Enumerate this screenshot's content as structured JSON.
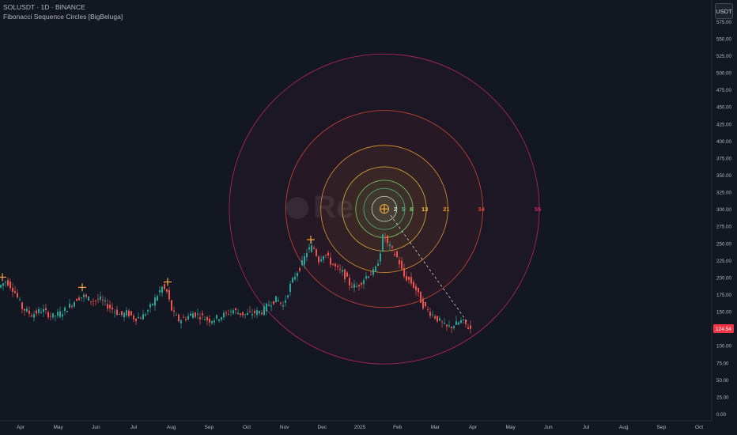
{
  "header": {
    "symbol_line": "SOLUSDT · 1D · BINANCE",
    "indicator_line": "Fibonacci Sequence Circles [BigBeluga]"
  },
  "currency_button": "USDT",
  "watermark": "Re",
  "colors": {
    "background": "#131722",
    "up": "#26a69a",
    "down": "#ef5350",
    "price_badge": "#f23645",
    "marker": "#f5a742"
  },
  "chart_data": {
    "type": "candlestick",
    "title": "",
    "symbol": "SOLUSDT",
    "timeframe": "1D",
    "exchange": "BINANCE",
    "indicator": "Fibonacci Sequence Circles [BigBeluga]",
    "ylim": [
      0,
      587
    ],
    "y_ticks": [
      "0.00",
      "25.00",
      "50.00",
      "75.00",
      "100.00",
      "125.00",
      "150.00",
      "175.00",
      "200.00",
      "225.00",
      "250.00",
      "275.00",
      "300.00",
      "325.00",
      "350.00",
      "375.00",
      "400.00",
      "425.00",
      "450.00",
      "475.00",
      "500.00",
      "525.00",
      "550.00",
      "575.00"
    ],
    "x_ticks": [
      "Apr",
      "May",
      "Jun",
      "Jul",
      "Aug",
      "Sep",
      "Oct",
      "Nov",
      "Dec",
      "2025",
      "Feb",
      "Mar",
      "Apr",
      "May",
      "Jun",
      "Jul",
      "Aug",
      "Sep",
      "Oct"
    ],
    "last_price": "124.54",
    "price_path": [
      [
        0,
        185
      ],
      [
        10,
        195
      ],
      [
        20,
        180
      ],
      [
        30,
        155
      ],
      [
        42,
        145
      ],
      [
        55,
        152
      ],
      [
        68,
        142
      ],
      [
        80,
        148
      ],
      [
        92,
        160
      ],
      [
        100,
        170
      ],
      [
        108,
        172
      ],
      [
        118,
        165
      ],
      [
        128,
        168
      ],
      [
        138,
        158
      ],
      [
        148,
        150
      ],
      [
        155,
        144
      ],
      [
        163,
        148
      ],
      [
        172,
        140
      ],
      [
        182,
        142
      ],
      [
        192,
        156
      ],
      [
        200,
        172
      ],
      [
        207,
        185
      ],
      [
        213,
        178
      ],
      [
        220,
        148
      ],
      [
        228,
        137
      ],
      [
        236,
        140
      ],
      [
        246,
        147
      ],
      [
        256,
        143
      ],
      [
        266,
        137
      ],
      [
        276,
        140
      ],
      [
        286,
        145
      ],
      [
        296,
        152
      ],
      [
        305,
        147
      ],
      [
        314,
        145
      ],
      [
        324,
        148
      ],
      [
        334,
        150
      ],
      [
        343,
        162
      ],
      [
        352,
        168
      ],
      [
        360,
        158
      ],
      [
        368,
        185
      ],
      [
        376,
        205
      ],
      [
        384,
        220
      ],
      [
        391,
        240
      ],
      [
        398,
        245
      ],
      [
        405,
        225
      ],
      [
        412,
        236
      ],
      [
        420,
        222
      ],
      [
        428,
        212
      ],
      [
        436,
        206
      ],
      [
        444,
        190
      ],
      [
        452,
        185
      ],
      [
        460,
        195
      ],
      [
        468,
        205
      ],
      [
        476,
        208
      ],
      [
        482,
        232
      ],
      [
        487,
        265
      ],
      [
        492,
        248
      ],
      [
        500,
        236
      ],
      [
        506,
        225
      ],
      [
        512,
        202
      ],
      [
        520,
        195
      ],
      [
        528,
        182
      ],
      [
        536,
        160
      ],
      [
        544,
        150
      ],
      [
        552,
        142
      ],
      [
        560,
        133
      ],
      [
        566,
        126
      ],
      [
        573,
        128
      ],
      [
        580,
        132
      ],
      [
        586,
        136
      ],
      [
        592,
        129
      ],
      [
        596,
        124.54
      ]
    ],
    "pivot_markers": [
      {
        "x_index": 3,
        "price": 200
      },
      {
        "x_index": 104,
        "price": 185
      },
      {
        "x_index": 212,
        "price": 193
      },
      {
        "x_index": 393,
        "price": 255
      },
      {
        "x_index": 486,
        "price": 300
      }
    ],
    "fib_circles": {
      "center_price": 300,
      "center_x_index": 486,
      "labels": [
        "2",
        "5",
        "8",
        "13",
        "21",
        "34",
        "55"
      ],
      "colors": [
        "#cfd8dc",
        "#5ab08a",
        "#7ed56f",
        "#e7b93c",
        "#e69a33",
        "#d6453a",
        "#c2285a"
      ]
    }
  }
}
